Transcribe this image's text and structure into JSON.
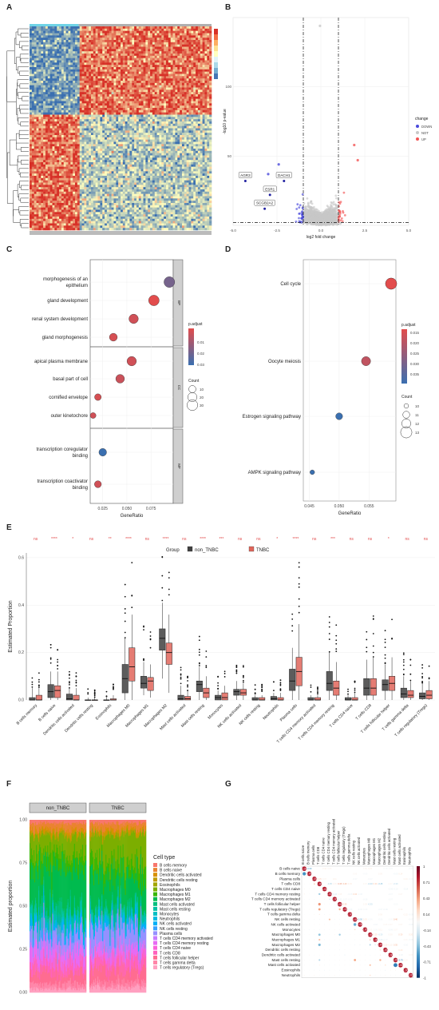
{
  "panels": {
    "A": "A",
    "B": "B",
    "C": "C",
    "D": "D",
    "E": "E",
    "F": "F",
    "G": "G"
  },
  "chart_data": [
    {
      "panel": "A",
      "type": "heatmap",
      "colors": [
        "#3a6fb0",
        "#ffffbf",
        "#d73027"
      ],
      "scale_colors": [
        "#d73027",
        "#f46d43",
        "#fdae61",
        "#fee090",
        "#ffffbf",
        "#e0f3f8",
        "#abd9e9",
        "#74add1",
        "#4575b4"
      ],
      "blocks": {
        "upper_left": "low",
        "upper_right": "high",
        "lower_left": "high",
        "lower_right": "low"
      }
    },
    {
      "panel": "B",
      "type": "scatter",
      "xlabel": "log2 fold change",
      "ylabel": "-log10 p-value",
      "xlim": [
        -5,
        5
      ],
      "ylim": [
        0,
        150
      ],
      "xticks": [
        -5.0,
        -2.5,
        0.0,
        2.5,
        5.0
      ],
      "yticks": [
        50,
        100
      ],
      "fc_cut": 1,
      "p_cut": 2,
      "legend_title": "change",
      "legend": [
        {
          "name": "DOWN",
          "color": "#4a4adb"
        },
        {
          "name": "NOT",
          "color": "#c8c8c8"
        },
        {
          "name": "UP",
          "color": "#f25555"
        }
      ],
      "labels": [
        {
          "text": "AGR3",
          "x": -4.3,
          "y": 32
        },
        {
          "text": "DACH1",
          "x": -2.1,
          "y": 32
        },
        {
          "text": "ESR1",
          "x": -2.9,
          "y": 22
        },
        {
          "text": "SCGB2A2",
          "x": -3.2,
          "y": 12
        }
      ]
    },
    {
      "panel": "C",
      "type": "scatter",
      "xlabel": "GeneRatio",
      "xticks": [
        0.025,
        0.05,
        0.075
      ],
      "xlim": [
        0.012,
        0.098
      ],
      "groups": [
        "BP",
        "CC",
        "MF"
      ],
      "terms": [
        {
          "label": "morphogenesis of an epithelium",
          "group": "BP",
          "x": 0.094,
          "count": 30,
          "padj": 0.02
        },
        {
          "label": "gland development",
          "group": "BP",
          "x": 0.078,
          "count": 29,
          "padj": 0.002
        },
        {
          "label": "renal system development",
          "group": "BP",
          "x": 0.057,
          "count": 21,
          "padj": 0.005
        },
        {
          "label": "gland morphogenesis",
          "group": "BP",
          "x": 0.036,
          "count": 13,
          "padj": 0.004
        },
        {
          "label": "apical plasma membrane",
          "group": "CC",
          "x": 0.055,
          "count": 21,
          "padj": 0.005
        },
        {
          "label": "basal part of cell",
          "group": "CC",
          "x": 0.043,
          "count": 17,
          "padj": 0.006
        },
        {
          "label": "cornified envelope",
          "group": "CC",
          "x": 0.02,
          "count": 8,
          "padj": 0.004
        },
        {
          "label": "outer kinetochore",
          "group": "CC",
          "x": 0.015,
          "count": 5,
          "padj": 0.005
        },
        {
          "label": "transcription coregulator binding",
          "group": "MF",
          "x": 0.025,
          "count": 12,
          "padj": 0.03
        },
        {
          "label": "transcription coactivator binding",
          "group": "MF",
          "x": 0.02,
          "count": 9,
          "padj": 0.005
        }
      ],
      "padj_title": "p.adjust",
      "padj_ticks": [
        0.01,
        0.02,
        0.03
      ],
      "count_title": "Count",
      "count_ticks": [
        10,
        20,
        30
      ]
    },
    {
      "panel": "D",
      "type": "scatter",
      "xlabel": "GeneRatio",
      "xticks": [
        0.045,
        0.05,
        0.055
      ],
      "xlim": [
        0.044,
        0.0595
      ],
      "terms": [
        {
          "label": "Cell cycle",
          "x": 0.0587,
          "count": 13,
          "padj": 0.012
        },
        {
          "label": "Oocyte meiosis",
          "x": 0.0545,
          "count": 12,
          "padj": 0.017
        },
        {
          "label": "Estrogen signaling pathway",
          "x": 0.05,
          "count": 11,
          "padj": 0.037
        },
        {
          "label": "AMPK signaling pathway",
          "x": 0.0455,
          "count": 10,
          "padj": 0.037
        }
      ],
      "padj_title": "p.adjust",
      "padj_ticks": [
        0.015,
        0.02,
        0.025,
        0.03,
        0.035
      ],
      "count_title": "Count",
      "count_ticks": [
        10,
        11,
        12,
        13
      ]
    },
    {
      "panel": "E",
      "type": "bar",
      "ylabel": "Estimated Proportion",
      "ylim": [
        0,
        0.62
      ],
      "yticks": [
        0.0,
        0.2,
        0.4,
        0.6
      ],
      "legend_title": "Group",
      "legend": [
        {
          "name": "non_TNBC",
          "color": "#404040"
        },
        {
          "name": "TNBC",
          "color": "#e0655a"
        }
      ],
      "categories": [
        "B cells memory",
        "B cells naive",
        "Dendritic cells activated",
        "Dendritic cells resting",
        "Eosinophils",
        "Macrophages M0",
        "Macrophages M1",
        "Macrophages M2",
        "Mast cells activated",
        "Mast cells resting",
        "Monocytes",
        "NK cells activated",
        "NK cells resting",
        "Neutrophils",
        "Plasma cells",
        "T cells CD4 memory activated",
        "T cells CD4 memory resting",
        "T cells CD4 naive",
        "T cells CD8",
        "T cells follicular helper",
        "T cells gamma delta",
        "T cells regulatory (Tregs)"
      ],
      "signif": [
        "ns",
        "****",
        "*",
        "ns",
        "**",
        "****",
        "ns",
        "****",
        "ns",
        "****",
        "***",
        "ns",
        "ns",
        "*",
        "****",
        "ns",
        "***",
        "ns",
        "ns",
        "*",
        "ns",
        "ns"
      ],
      "series": [
        {
          "name": "non_TNBC",
          "boxes": [
            [
              0,
              0,
              0,
              0.01,
              0.05
            ],
            [
              0,
              0.01,
              0.035,
              0.065,
              0.12
            ],
            [
              0,
              0,
              0.005,
              0.025,
              0.05
            ],
            [
              0,
              0,
              0,
              0,
              0.01
            ],
            [
              0,
              0,
              0,
              0,
              0.01
            ],
            [
              0,
              0.03,
              0.09,
              0.15,
              0.26
            ],
            [
              0.02,
              0.05,
              0.07,
              0.1,
              0.16
            ],
            [
              0.09,
              0.21,
              0.26,
              0.3,
              0.41
            ],
            [
              0,
              0,
              0.005,
              0.02,
              0.06
            ],
            [
              0,
              0.035,
              0.065,
              0.08,
              0.14
            ],
            [
              0,
              0,
              0.01,
              0.02,
              0.04
            ],
            [
              0,
              0.02,
              0.035,
              0.045,
              0.08
            ],
            [
              0,
              0,
              0,
              0.01,
              0.02
            ],
            [
              0,
              0,
              0.005,
              0.015,
              0.03
            ],
            [
              0,
              0.04,
              0.08,
              0.13,
              0.22
            ],
            [
              0,
              0,
              0,
              0.01,
              0.02
            ],
            [
              0,
              0.04,
              0.07,
              0.12,
              0.2
            ],
            [
              0,
              0,
              0,
              0.01,
              0.02
            ],
            [
              0,
              0.02,
              0.05,
              0.09,
              0.17
            ],
            [
              0,
              0.04,
              0.065,
              0.085,
              0.15
            ],
            [
              0,
              0.01,
              0.025,
              0.05,
              0.1
            ],
            [
              0,
              0.005,
              0.015,
              0.03,
              0.07
            ]
          ]
        },
        {
          "name": "TNBC",
          "boxes": [
            [
              0,
              0,
              0,
              0.02,
              0.05
            ],
            [
              0,
              0.01,
              0.04,
              0.06,
              0.12
            ],
            [
              0,
              0,
              0,
              0.02,
              0.05
            ],
            [
              0,
              0,
              0,
              0,
              0.01
            ],
            [
              0,
              0,
              0,
              0.005,
              0.02
            ],
            [
              0,
              0.08,
              0.14,
              0.22,
              0.36
            ],
            [
              0.01,
              0.04,
              0.08,
              0.095,
              0.15
            ],
            [
              0.03,
              0.15,
              0.2,
              0.24,
              0.36
            ],
            [
              0,
              0,
              0.005,
              0.015,
              0.04
            ],
            [
              0,
              0.01,
              0.03,
              0.05,
              0.1
            ],
            [
              0,
              0,
              0.01,
              0.03,
              0.06
            ],
            [
              0,
              0.02,
              0.03,
              0.045,
              0.07
            ],
            [
              0,
              0,
              0,
              0.01,
              0.02
            ],
            [
              0,
              0,
              0,
              0.01,
              0.03
            ],
            [
              0,
              0.06,
              0.12,
              0.18,
              0.32
            ],
            [
              0,
              0,
              0,
              0.01,
              0.02
            ],
            [
              0,
              0.02,
              0.05,
              0.08,
              0.16
            ],
            [
              0,
              0,
              0,
              0.01,
              0.03
            ],
            [
              0,
              0.02,
              0.05,
              0.09,
              0.18
            ],
            [
              0,
              0.04,
              0.07,
              0.1,
              0.18
            ],
            [
              0,
              0.01,
              0.02,
              0.04,
              0.08
            ],
            [
              0,
              0.005,
              0.02,
              0.04,
              0.08
            ]
          ]
        }
      ]
    },
    {
      "panel": "F",
      "type": "area",
      "ylabel": "Estimated proportion",
      "ylim": [
        0,
        1
      ],
      "yticks": [
        "0.00",
        "0.25",
        "0.50",
        "0.75",
        "1.00"
      ],
      "facets": [
        "non_TNBC",
        "TNBC"
      ],
      "legend_title": "Cell type",
      "cell_types": [
        "B cells memory",
        "B cells naive",
        "Dendritic cells activated",
        "Dendritic cells resting",
        "Eosinophils",
        "Macrophages M0",
        "Macrophages M1",
        "Macrophages M2",
        "Mast cells activated",
        "Mast cells resting",
        "Monocytes",
        "Neutrophils",
        "NK cells activated",
        "NK cells resting",
        "Plasma cells",
        "T cells CD4 memory activated",
        "T cells CD4 memory resting",
        "T cells CD4 naive",
        "T cells CD8",
        "T cells follicular helper",
        "T cells gamma delta",
        "T cells regulatory (Tregs)"
      ],
      "colors": [
        "#f8766d",
        "#ea8331",
        "#d89000",
        "#c09b00",
        "#a3a500",
        "#7cae00",
        "#39b600",
        "#00bb4e",
        "#00bf7d",
        "#00c1a3",
        "#00bfc4",
        "#00bae0",
        "#00b0f6",
        "#35a2ff",
        "#9590ff",
        "#c77cff",
        "#e76bf3",
        "#fa62db",
        "#ff62bc",
        "#ff6c91",
        "#ff85a8",
        "#ffa0c0"
      ],
      "mean_proportions": {
        "non_TNBC": [
          0.02,
          0.04,
          0.02,
          0.01,
          0.005,
          0.11,
          0.08,
          0.25,
          0.02,
          0.06,
          0.01,
          0.01,
          0.04,
          0.005,
          0.09,
          0.005,
          0.08,
          0.005,
          0.06,
          0.07,
          0.03,
          0.02
        ],
        "TNBC": [
          0.02,
          0.04,
          0.02,
          0.01,
          0.005,
          0.16,
          0.08,
          0.2,
          0.01,
          0.035,
          0.02,
          0.005,
          0.035,
          0.005,
          0.13,
          0.005,
          0.06,
          0.01,
          0.06,
          0.08,
          0.03,
          0.03
        ]
      }
    },
    {
      "panel": "G",
      "type": "heatmap",
      "labels": [
        "B cells naive",
        "B cells memory",
        "Plasma cells",
        "T cells CD8",
        "T cells CD4 naive",
        "T cells CD4 memory resting",
        "T cells CD4 memory activated",
        "T cells follicular helper",
        "T cells regulatory (Tregs)",
        "T cells gamma delta",
        "NK cells resting",
        "NK cells activated",
        "Monocytes",
        "Macrophages M0",
        "Macrophages M1",
        "Macrophages M2",
        "Dendritic cells resting",
        "Dendritic cells activated",
        "Mast cells resting",
        "Mast cells activated",
        "Eosinophils",
        "Neutrophils"
      ],
      "diag_label": "1.00",
      "colorbar_ticks": [
        "1",
        "0.71",
        "0.43",
        "0.14",
        "-0.14",
        "-0.43",
        "-0.71",
        "-1"
      ],
      "colors": [
        "#67001f",
        "#b2182b",
        "#d6604d",
        "#f4a582",
        "#fddbc7",
        "#f7f7f7",
        "#d1e5f0",
        "#92c5de",
        "#4393c3",
        "#2166ac",
        "#053061"
      ],
      "strong_pairs": [
        [
          1,
          0,
          -0.6
        ],
        [
          3,
          2,
          0.25
        ],
        [
          5,
          3,
          -0.35
        ],
        [
          7,
          3,
          0.45
        ],
        [
          8,
          3,
          0.4
        ],
        [
          8,
          7,
          0.35
        ],
        [
          10,
          5,
          0.3
        ],
        [
          11,
          10,
          -0.5
        ],
        [
          13,
          3,
          -0.4
        ],
        [
          13,
          7,
          -0.35
        ],
        [
          14,
          3,
          0.3
        ],
        [
          14,
          13,
          0.25
        ],
        [
          15,
          3,
          -0.45
        ],
        [
          15,
          13,
          -0.3
        ],
        [
          15,
          14,
          -0.2
        ],
        [
          18,
          10,
          0.4
        ],
        [
          18,
          15,
          0.35
        ],
        [
          19,
          18,
          -0.7
        ],
        [
          19,
          13,
          0.3
        ],
        [
          18,
          3,
          -0.3
        ],
        [
          12,
          10,
          0.2
        ],
        [
          16,
          15,
          0.2
        ],
        [
          17,
          15,
          0.15
        ],
        [
          9,
          3,
          0.15
        ],
        [
          6,
          5,
          -0.2
        ],
        [
          20,
          18,
          0.1
        ],
        [
          21,
          13,
          0.2
        ],
        [
          19,
          16,
          0.2
        ],
        [
          18,
          19,
          -0.7
        ]
      ]
    }
  ]
}
